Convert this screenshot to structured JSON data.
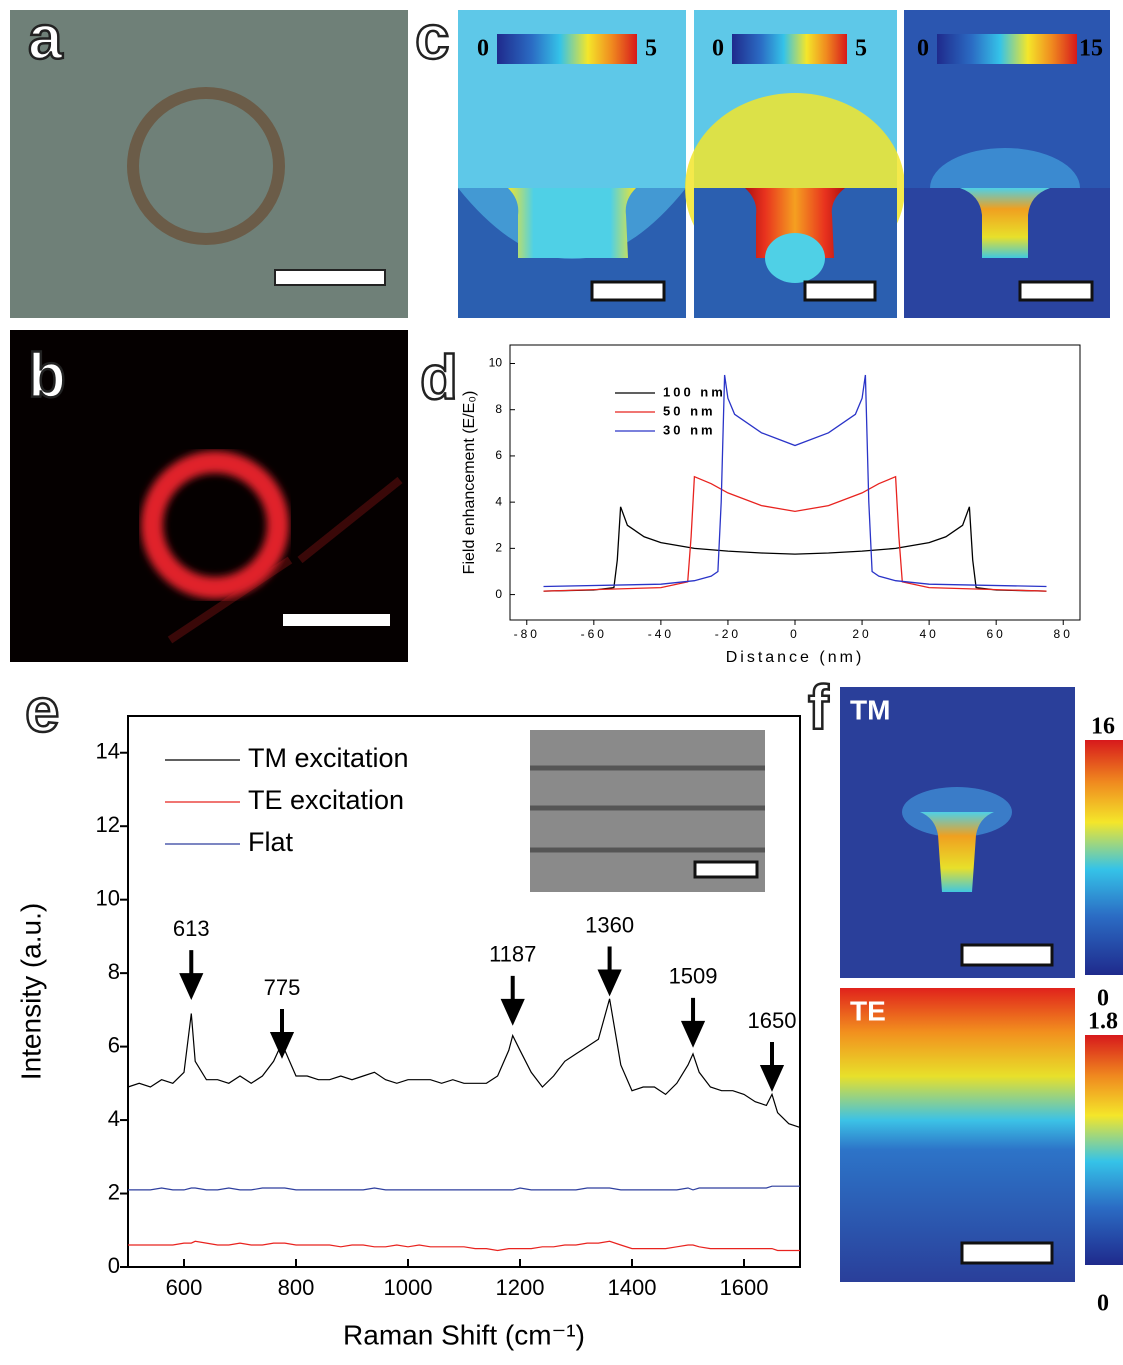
{
  "panel_labels": [
    "a",
    "b",
    "c",
    "d",
    "e",
    "f"
  ],
  "colorbars_c": [
    {
      "min": 0,
      "max": 5
    },
    {
      "min": 0,
      "max": 5
    },
    {
      "min": 0,
      "max": 15
    }
  ],
  "panel_f": [
    {
      "label": "TM",
      "max": 16,
      "min": 0
    },
    {
      "label": "TE",
      "max": 1.8,
      "min": 0
    }
  ],
  "chart_data": [
    {
      "type": "line",
      "xlabel": "Distance (nm)",
      "ylabel": "Field enhancement (E/E₀)",
      "xlim": [
        -85,
        85
      ],
      "ylim": [
        -1.1,
        10.8
      ],
      "xticks": [
        -80,
        -60,
        -40,
        -20,
        0,
        20,
        40,
        60,
        80
      ],
      "yticks": [
        0,
        2,
        4,
        6,
        8,
        10
      ],
      "series": [
        {
          "name": "100 nm",
          "color": "#000000",
          "x": [
            -75,
            -60,
            -54,
            -53,
            -52,
            -50,
            -45,
            -40,
            -30,
            -20,
            -10,
            0,
            10,
            20,
            30,
            40,
            45,
            50,
            52,
            53,
            54,
            60,
            75
          ],
          "values": [
            0.15,
            0.2,
            0.3,
            1.5,
            3.8,
            3.0,
            2.5,
            2.25,
            2.0,
            1.88,
            1.8,
            1.75,
            1.8,
            1.88,
            2.0,
            2.25,
            2.5,
            3.0,
            3.8,
            1.5,
            0.3,
            0.2,
            0.15
          ]
        },
        {
          "name": "50 nm",
          "color": "#e8231f",
          "x": [
            -75,
            -40,
            -32,
            -31,
            -30,
            -25,
            -20,
            -10,
            0,
            10,
            20,
            25,
            30,
            31,
            32,
            40,
            75
          ],
          "values": [
            0.15,
            0.3,
            0.55,
            2.5,
            5.1,
            4.8,
            4.4,
            3.85,
            3.6,
            3.85,
            4.4,
            4.8,
            5.1,
            2.5,
            0.55,
            0.3,
            0.15
          ]
        },
        {
          "name": "30 nm",
          "color": "#2a34c8",
          "x": [
            -75,
            -40,
            -30,
            -25,
            -23,
            -22,
            -21,
            -20,
            -18,
            -10,
            0,
            10,
            18,
            20,
            21,
            22,
            23,
            25,
            30,
            40,
            75
          ],
          "values": [
            0.35,
            0.45,
            0.6,
            0.8,
            1.0,
            4.0,
            9.5,
            8.5,
            7.8,
            7.0,
            6.45,
            7.0,
            7.8,
            8.5,
            9.5,
            4.0,
            1.0,
            0.8,
            0.6,
            0.45,
            0.35
          ]
        }
      ]
    },
    {
      "type": "line",
      "xlabel": "Raman Shift (cm⁻¹)",
      "ylabel": "Intensity (a.u.)",
      "xlim": [
        500,
        1700
      ],
      "ylim": [
        0,
        15
      ],
      "xticks": [
        600,
        800,
        1000,
        1200,
        1400,
        1600
      ],
      "yticks": [
        0,
        2,
        4,
        6,
        8,
        10,
        12,
        14
      ],
      "x": [
        500,
        520,
        540,
        560,
        580,
        600,
        613,
        620,
        640,
        660,
        680,
        700,
        720,
        740,
        760,
        775,
        780,
        800,
        820,
        840,
        860,
        880,
        900,
        920,
        940,
        960,
        980,
        1000,
        1020,
        1040,
        1060,
        1080,
        1100,
        1120,
        1140,
        1160,
        1180,
        1187,
        1200,
        1220,
        1240,
        1260,
        1280,
        1300,
        1320,
        1340,
        1360,
        1380,
        1400,
        1420,
        1440,
        1460,
        1480,
        1500,
        1509,
        1520,
        1540,
        1560,
        1580,
        1600,
        1620,
        1640,
        1650,
        1660,
        1680,
        1700
      ],
      "series": [
        {
          "name": "TM excitation",
          "color": "#000000",
          "values": [
            4.9,
            5.0,
            4.9,
            5.1,
            5.0,
            5.3,
            6.9,
            5.6,
            5.1,
            5.1,
            5.0,
            5.2,
            5.0,
            5.2,
            5.6,
            6.1,
            5.9,
            5.2,
            5.2,
            5.1,
            5.1,
            5.2,
            5.1,
            5.2,
            5.3,
            5.1,
            5.0,
            5.1,
            5.1,
            5.1,
            5.0,
            5.1,
            5.0,
            5.0,
            5.0,
            5.2,
            5.9,
            6.3,
            5.9,
            5.3,
            4.9,
            5.2,
            5.6,
            5.8,
            6.0,
            6.2,
            7.3,
            5.5,
            4.8,
            4.9,
            4.9,
            4.7,
            5.0,
            5.5,
            5.8,
            5.3,
            4.9,
            4.8,
            4.8,
            4.7,
            4.5,
            4.4,
            4.7,
            4.2,
            3.9,
            3.8
          ]
        },
        {
          "name": "TE excitation",
          "color": "#e8231f",
          "values": [
            0.6,
            0.6,
            0.6,
            0.6,
            0.6,
            0.65,
            0.65,
            0.7,
            0.65,
            0.6,
            0.6,
            0.65,
            0.6,
            0.6,
            0.65,
            0.65,
            0.65,
            0.6,
            0.6,
            0.6,
            0.6,
            0.55,
            0.6,
            0.6,
            0.55,
            0.55,
            0.6,
            0.55,
            0.6,
            0.55,
            0.55,
            0.55,
            0.55,
            0.5,
            0.5,
            0.45,
            0.5,
            0.5,
            0.5,
            0.5,
            0.55,
            0.55,
            0.6,
            0.6,
            0.65,
            0.65,
            0.7,
            0.6,
            0.5,
            0.5,
            0.5,
            0.5,
            0.55,
            0.6,
            0.6,
            0.55,
            0.5,
            0.5,
            0.5,
            0.5,
            0.5,
            0.5,
            0.5,
            0.45,
            0.45,
            0.45
          ]
        },
        {
          "name": "Flat",
          "color": "#2e3f9e",
          "values": [
            2.1,
            2.1,
            2.1,
            2.15,
            2.1,
            2.1,
            2.15,
            2.15,
            2.1,
            2.1,
            2.15,
            2.1,
            2.1,
            2.15,
            2.15,
            2.15,
            2.15,
            2.1,
            2.1,
            2.1,
            2.1,
            2.1,
            2.1,
            2.1,
            2.15,
            2.1,
            2.1,
            2.1,
            2.1,
            2.1,
            2.1,
            2.1,
            2.1,
            2.1,
            2.1,
            2.1,
            2.1,
            2.1,
            2.15,
            2.1,
            2.1,
            2.1,
            2.1,
            2.1,
            2.15,
            2.15,
            2.15,
            2.1,
            2.1,
            2.1,
            2.1,
            2.1,
            2.1,
            2.15,
            2.1,
            2.15,
            2.15,
            2.15,
            2.15,
            2.15,
            2.15,
            2.15,
            2.2,
            2.2,
            2.2,
            2.2
          ]
        }
      ],
      "annotations": [
        {
          "x": 613,
          "y": 7.4
        },
        {
          "x": 775,
          "y": 5.8
        },
        {
          "x": 1187,
          "y": 6.7
        },
        {
          "x": 1360,
          "y": 7.5
        },
        {
          "x": 1509,
          "y": 6.1
        },
        {
          "x": 1650,
          "y": 4.9
        }
      ]
    }
  ]
}
